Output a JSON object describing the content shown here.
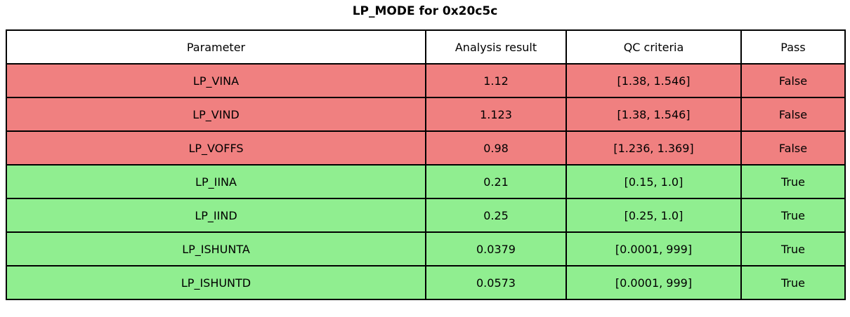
{
  "title": "LP_MODE for 0x20c5c",
  "colors": {
    "fail_row": "#f08080",
    "pass_row": "#90ee90",
    "border": "#000000",
    "header_bg": "#ffffff",
    "text": "#000000"
  },
  "table": {
    "columns": [
      "Parameter",
      "Analysis result",
      "QC criteria",
      "Pass"
    ],
    "rows": [
      {
        "parameter": "LP_VINA",
        "result": "1.12",
        "criteria": "[1.38, 1.546]",
        "pass": "False",
        "status": "fail"
      },
      {
        "parameter": "LP_VIND",
        "result": "1.123",
        "criteria": "[1.38, 1.546]",
        "pass": "False",
        "status": "fail"
      },
      {
        "parameter": "LP_VOFFS",
        "result": "0.98",
        "criteria": "[1.236, 1.369]",
        "pass": "False",
        "status": "fail"
      },
      {
        "parameter": "LP_IINA",
        "result": "0.21",
        "criteria": "[0.15, 1.0]",
        "pass": "True",
        "status": "pass"
      },
      {
        "parameter": "LP_IIND",
        "result": "0.25",
        "criteria": "[0.25, 1.0]",
        "pass": "True",
        "status": "pass"
      },
      {
        "parameter": "LP_ISHUNTA",
        "result": "0.0379",
        "criteria": "[0.0001, 999]",
        "pass": "True",
        "status": "pass"
      },
      {
        "parameter": "LP_ISHUNTD",
        "result": "0.0573",
        "criteria": "[0.0001, 999]",
        "pass": "True",
        "status": "pass"
      }
    ]
  }
}
